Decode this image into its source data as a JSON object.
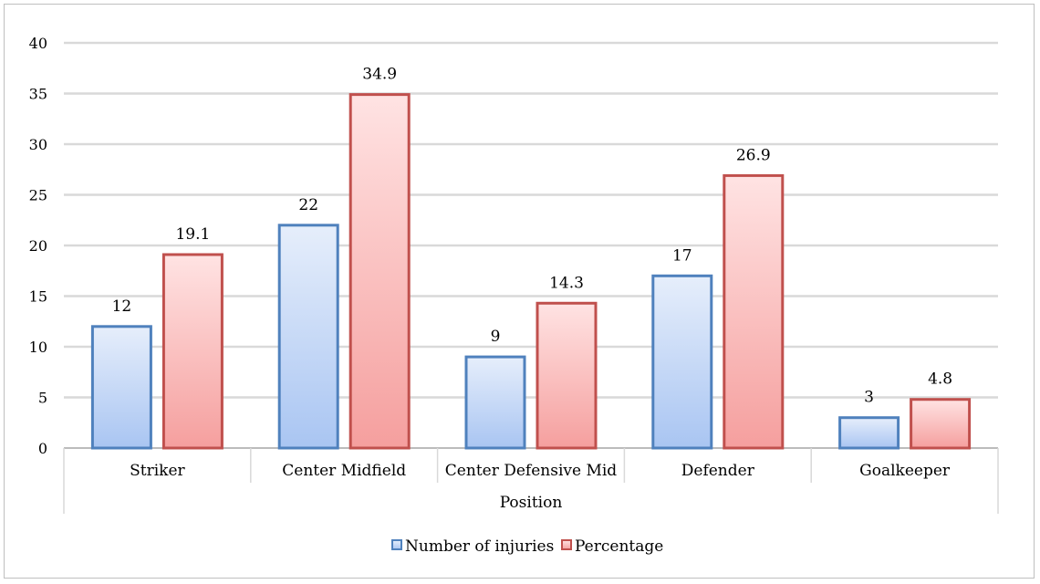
{
  "chart_data": {
    "type": "bar",
    "categories": [
      "Striker",
      "Center Midfield",
      "Center Defensive Mid",
      "Defender",
      "Goalkeeper"
    ],
    "series": [
      {
        "name": "Number of injuries",
        "values": [
          12,
          22,
          9,
          17,
          3
        ],
        "color": "#4f81bd"
      },
      {
        "name": "Percentage",
        "values": [
          19.1,
          34.9,
          14.3,
          26.9,
          4.8
        ],
        "color": "#c0504d"
      }
    ],
    "data_labels": [
      [
        "12",
        "22",
        "9",
        "17",
        "3"
      ],
      [
        "19.1",
        "34.9",
        "14.3",
        "26.9",
        "4.8"
      ]
    ],
    "title": "",
    "xlabel": "Position",
    "ylabel": "",
    "ylim": [
      0,
      40
    ],
    "yticks": [
      "0",
      "5",
      "10",
      "15",
      "20",
      "25",
      "30",
      "35",
      "40"
    ],
    "grid": true,
    "legend_position": "bottom"
  }
}
